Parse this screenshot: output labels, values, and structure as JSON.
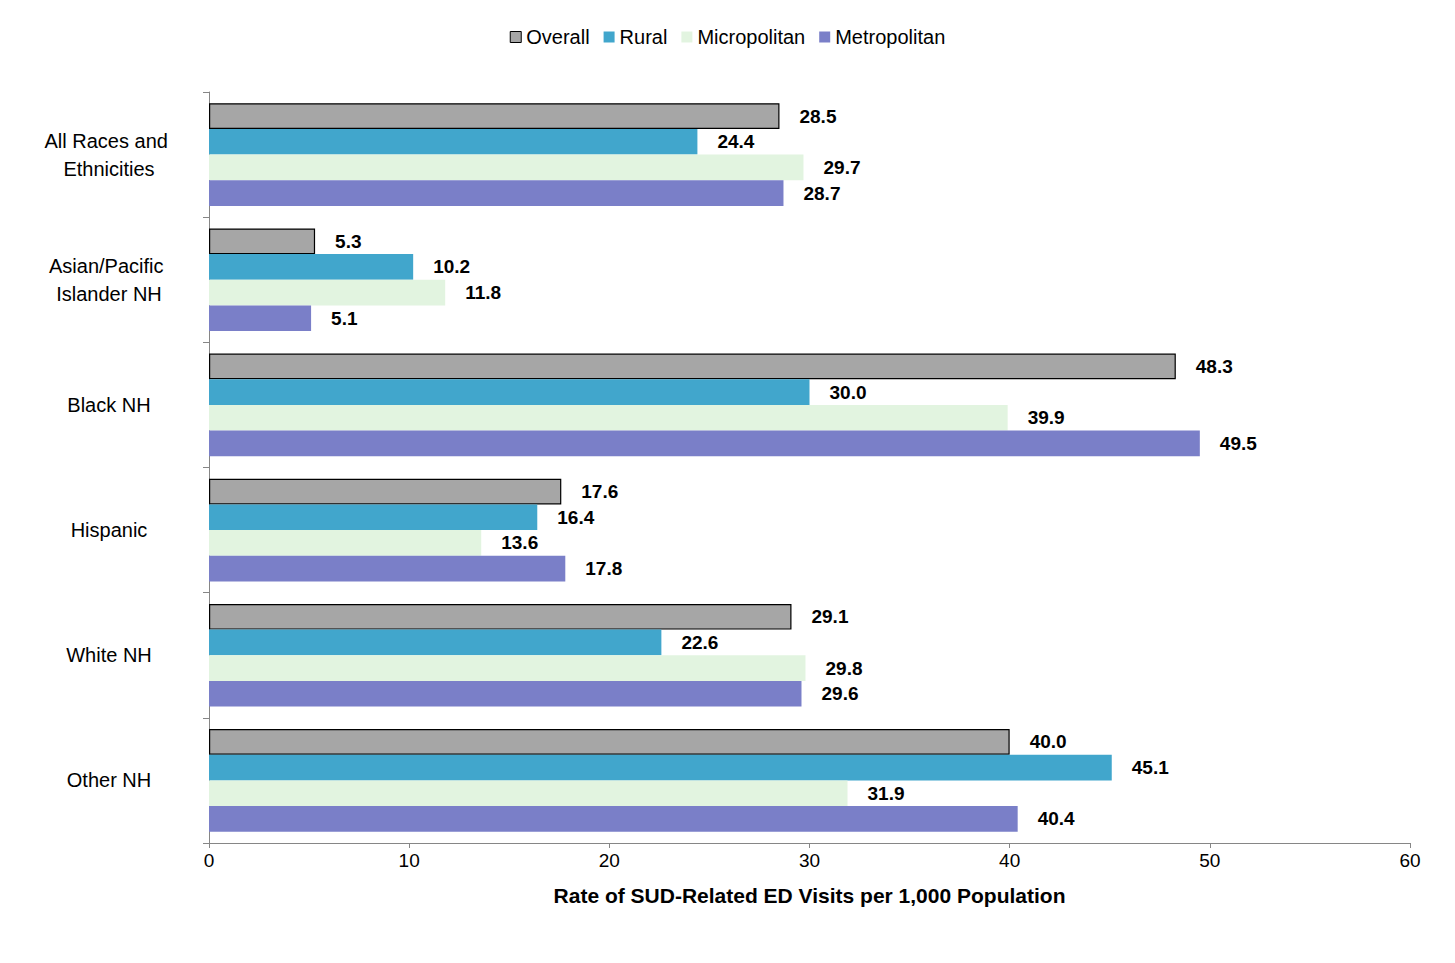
{
  "chart_data": {
    "type": "bar",
    "orientation": "horizontal",
    "x_label": "Rate of SUD-Related ED Visits per 1,000 Population",
    "categories": [
      "All Races and Ethnicities",
      "Asian/Pacific Islander NH",
      "Black NH",
      "Hispanic",
      "White NH",
      "Other NH"
    ],
    "series": [
      {
        "name": "Overall",
        "color": "#a6a6a6",
        "values": [
          28.5,
          5.3,
          48.3,
          17.6,
          29.1,
          40.0
        ],
        "value_labels": [
          "28.5",
          "5.3",
          "48.3",
          "17.6",
          "29.1",
          "40.0"
        ]
      },
      {
        "name": "Rural",
        "color": "#41a6cc",
        "values": [
          24.4,
          10.2,
          30.0,
          16.4,
          22.6,
          45.1
        ],
        "value_labels": [
          "24.4",
          "10.2",
          "30.0",
          "16.4",
          "22.6",
          "45.1"
        ]
      },
      {
        "name": "Micropolitan",
        "color": "#e2f4e0",
        "values": [
          29.7,
          11.8,
          39.9,
          13.6,
          29.8,
          31.9
        ],
        "value_labels": [
          "29.7",
          "11.8",
          "39.9",
          "13.6",
          "29.8",
          "31.9"
        ]
      },
      {
        "name": "Metropolitan",
        "color": "#7a7fc8",
        "values": [
          28.7,
          5.1,
          49.5,
          17.8,
          29.6,
          40.4
        ],
        "value_labels": [
          "28.7",
          "5.1",
          "49.5",
          "17.8",
          "29.6",
          "40.4"
        ]
      }
    ],
    "xlim": [
      0,
      60
    ],
    "xticks": [
      0,
      10,
      20,
      30,
      40,
      50,
      60
    ],
    "grid": false,
    "legend": "top",
    "data_labels": true
  }
}
